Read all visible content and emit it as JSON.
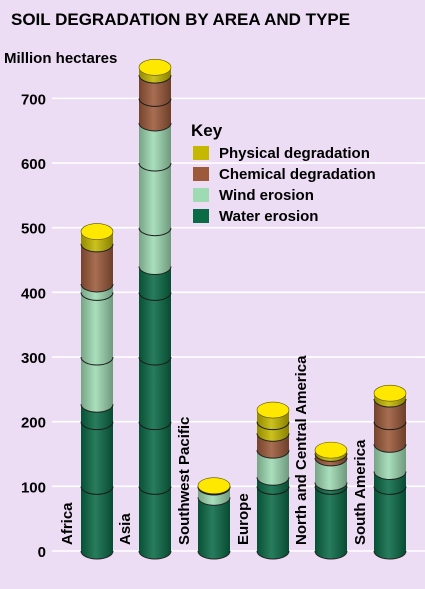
{
  "chart_data": {
    "type": "bar",
    "stacked": true,
    "title": "SOIL DEGRADATION BY AREA AND TYPE",
    "ylabel": "Million hectares",
    "ylim": [
      0,
      700
    ],
    "yticks": [
      0,
      100,
      200,
      300,
      400,
      500,
      600,
      700
    ],
    "grid": true,
    "legend_position": "top-right",
    "legend_title": "Key",
    "categories": [
      "Africa",
      "Asia",
      "Southwest Pacific",
      "Europe",
      "North and Central America",
      "South America"
    ],
    "series": [
      {
        "name": "Water erosion",
        "color": "#0b6b47",
        "values": [
          227,
          440,
          83,
          114,
          106,
          123
        ]
      },
      {
        "name": "Wind erosion",
        "color": "#9edbb3",
        "values": [
          186,
          222,
          16,
          42,
          38,
          42
        ]
      },
      {
        "name": "Chemical degradation",
        "color": "#9c5a3a",
        "values": [
          62,
          74,
          1,
          26,
          7,
          70
        ]
      },
      {
        "name": "Physical degradation",
        "color": "#c4b800",
        "values": [
          19,
          12,
          1,
          36,
          5,
          9
        ]
      }
    ],
    "colors": {
      "background": "#ecdcf4",
      "gridline": "#ffffff",
      "text": "#000000"
    }
  }
}
